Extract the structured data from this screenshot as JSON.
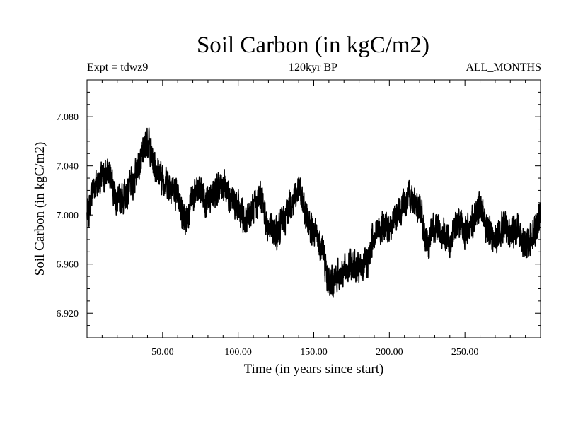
{
  "chart_data": {
    "type": "line",
    "title": "Soil Carbon (in kgC/m2)",
    "subtitle_left": "Expt = tdwz9",
    "subtitle_center": "120kyr BP",
    "subtitle_right": "ALL_MONTHS",
    "xlabel": "Time (in years since start)",
    "ylabel": "Soil Carbon (in kgC/m2)",
    "xlim": [
      0,
      300
    ],
    "ylim": [
      6.9,
      7.11
    ],
    "x_ticks": [
      50,
      100,
      150,
      200,
      250
    ],
    "x_tick_labels": [
      "50.00",
      "100.00",
      "150.00",
      "200.00",
      "250.00"
    ],
    "y_ticks": [
      6.92,
      6.96,
      7.0,
      7.04,
      7.08
    ],
    "y_tick_labels": [
      "6.920",
      "6.960",
      "7.000",
      "7.040",
      "7.080"
    ],
    "grid": false,
    "color": "#000000",
    "series": [
      {
        "x": [
          0,
          5,
          10,
          15,
          20,
          25,
          30,
          35,
          40,
          45,
          50,
          55,
          60,
          65,
          70,
          75,
          80,
          85,
          90,
          95,
          100,
          105,
          110,
          115,
          120,
          125,
          130,
          135,
          140,
          145,
          150,
          155,
          160,
          165,
          170,
          175,
          180,
          185,
          190,
          195,
          200,
          205,
          210,
          215,
          220,
          225,
          230,
          235,
          240,
          245,
          250,
          255,
          260,
          265,
          270,
          275,
          280,
          285,
          290,
          295,
          300
        ],
        "values": [
          7.0,
          7.025,
          7.03,
          7.035,
          7.01,
          7.015,
          7.025,
          7.045,
          7.06,
          7.04,
          7.03,
          7.025,
          7.015,
          6.995,
          7.015,
          7.02,
          7.01,
          7.02,
          7.025,
          7.015,
          7.005,
          6.995,
          7.005,
          7.015,
          6.99,
          6.985,
          6.995,
          7.01,
          7.02,
          7.0,
          6.985,
          6.975,
          6.945,
          6.95,
          6.955,
          6.96,
          6.955,
          6.96,
          6.985,
          6.99,
          6.99,
          7.0,
          7.01,
          7.015,
          7.005,
          6.975,
          6.99,
          6.985,
          6.98,
          6.995,
          6.985,
          6.995,
          7.005,
          6.99,
          6.98,
          6.99,
          6.985,
          6.99,
          6.975,
          6.985,
          7.0
        ]
      }
    ]
  }
}
